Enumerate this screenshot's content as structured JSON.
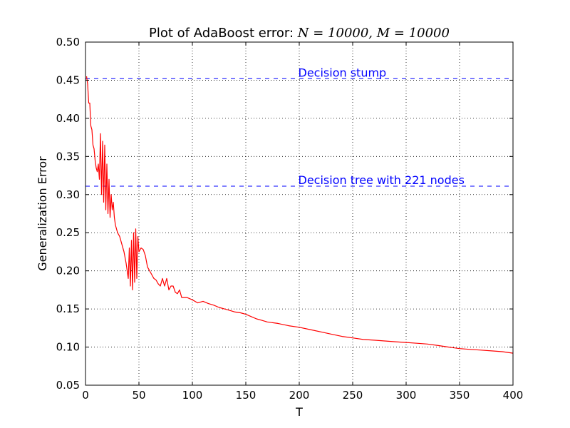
{
  "chart_data": {
    "type": "line",
    "title": {
      "prefix": "Plot of AdaBoost error: ",
      "math": "N = 10000, M = 10000"
    },
    "xlabel": "T",
    "ylabel": "Generalization Error",
    "xlim": [
      0,
      400
    ],
    "ylim": [
      0.05,
      0.5
    ],
    "xticks": [
      0,
      50,
      100,
      150,
      200,
      250,
      300,
      350,
      400
    ],
    "yticks": [
      0.05,
      0.1,
      0.15,
      0.2,
      0.25,
      0.3,
      0.35,
      0.4,
      0.45,
      0.5
    ],
    "grid": true,
    "colors": {
      "series": "#ff0000",
      "reference": "#0000ff"
    },
    "reference_lines": [
      {
        "label": "Decision stump",
        "y": 0.452,
        "label_x": 199
      },
      {
        "label": "Decision tree with 221 nodes",
        "y": 0.311,
        "label_x": 199
      }
    ],
    "series": [
      {
        "x": [
          1,
          2,
          3,
          4,
          5,
          6,
          7,
          8,
          9,
          10,
          11,
          12,
          13,
          14,
          15,
          16,
          17,
          18,
          19,
          20,
          21,
          22,
          23,
          24,
          25,
          26,
          27,
          28,
          29,
          30,
          32,
          34,
          36,
          38,
          40,
          41,
          42,
          43,
          44,
          45,
          46,
          47,
          48,
          49,
          50,
          52,
          54,
          56,
          58,
          60,
          62,
          64,
          66,
          68,
          70,
          72,
          74,
          76,
          78,
          80,
          82,
          84,
          86,
          88,
          90,
          95,
          100,
          105,
          110,
          115,
          120,
          125,
          130,
          135,
          140,
          145,
          150,
          155,
          160,
          165,
          170,
          175,
          180,
          190,
          200,
          210,
          220,
          230,
          240,
          250,
          260,
          270,
          280,
          290,
          300,
          310,
          320,
          330,
          340,
          350,
          360,
          370,
          380,
          390,
          400
        ],
        "values": [
          0.455,
          0.445,
          0.42,
          0.42,
          0.39,
          0.385,
          0.365,
          0.36,
          0.345,
          0.335,
          0.33,
          0.34,
          0.32,
          0.38,
          0.3,
          0.37,
          0.29,
          0.365,
          0.28,
          0.34,
          0.275,
          0.32,
          0.27,
          0.3,
          0.28,
          0.29,
          0.27,
          0.26,
          0.255,
          0.25,
          0.245,
          0.235,
          0.225,
          0.21,
          0.19,
          0.23,
          0.18,
          0.24,
          0.175,
          0.25,
          0.185,
          0.255,
          0.19,
          0.245,
          0.225,
          0.23,
          0.228,
          0.22,
          0.205,
          0.2,
          0.195,
          0.19,
          0.188,
          0.183,
          0.18,
          0.19,
          0.18,
          0.19,
          0.175,
          0.18,
          0.18,
          0.172,
          0.17,
          0.175,
          0.165,
          0.165,
          0.162,
          0.158,
          0.16,
          0.157,
          0.155,
          0.152,
          0.15,
          0.148,
          0.146,
          0.145,
          0.143,
          0.14,
          0.137,
          0.135,
          0.133,
          0.132,
          0.131,
          0.128,
          0.126,
          0.123,
          0.12,
          0.117,
          0.114,
          0.112,
          0.11,
          0.109,
          0.108,
          0.107,
          0.106,
          0.105,
          0.104,
          0.102,
          0.1,
          0.098,
          0.097,
          0.096,
          0.095,
          0.094,
          0.092
        ]
      }
    ]
  }
}
